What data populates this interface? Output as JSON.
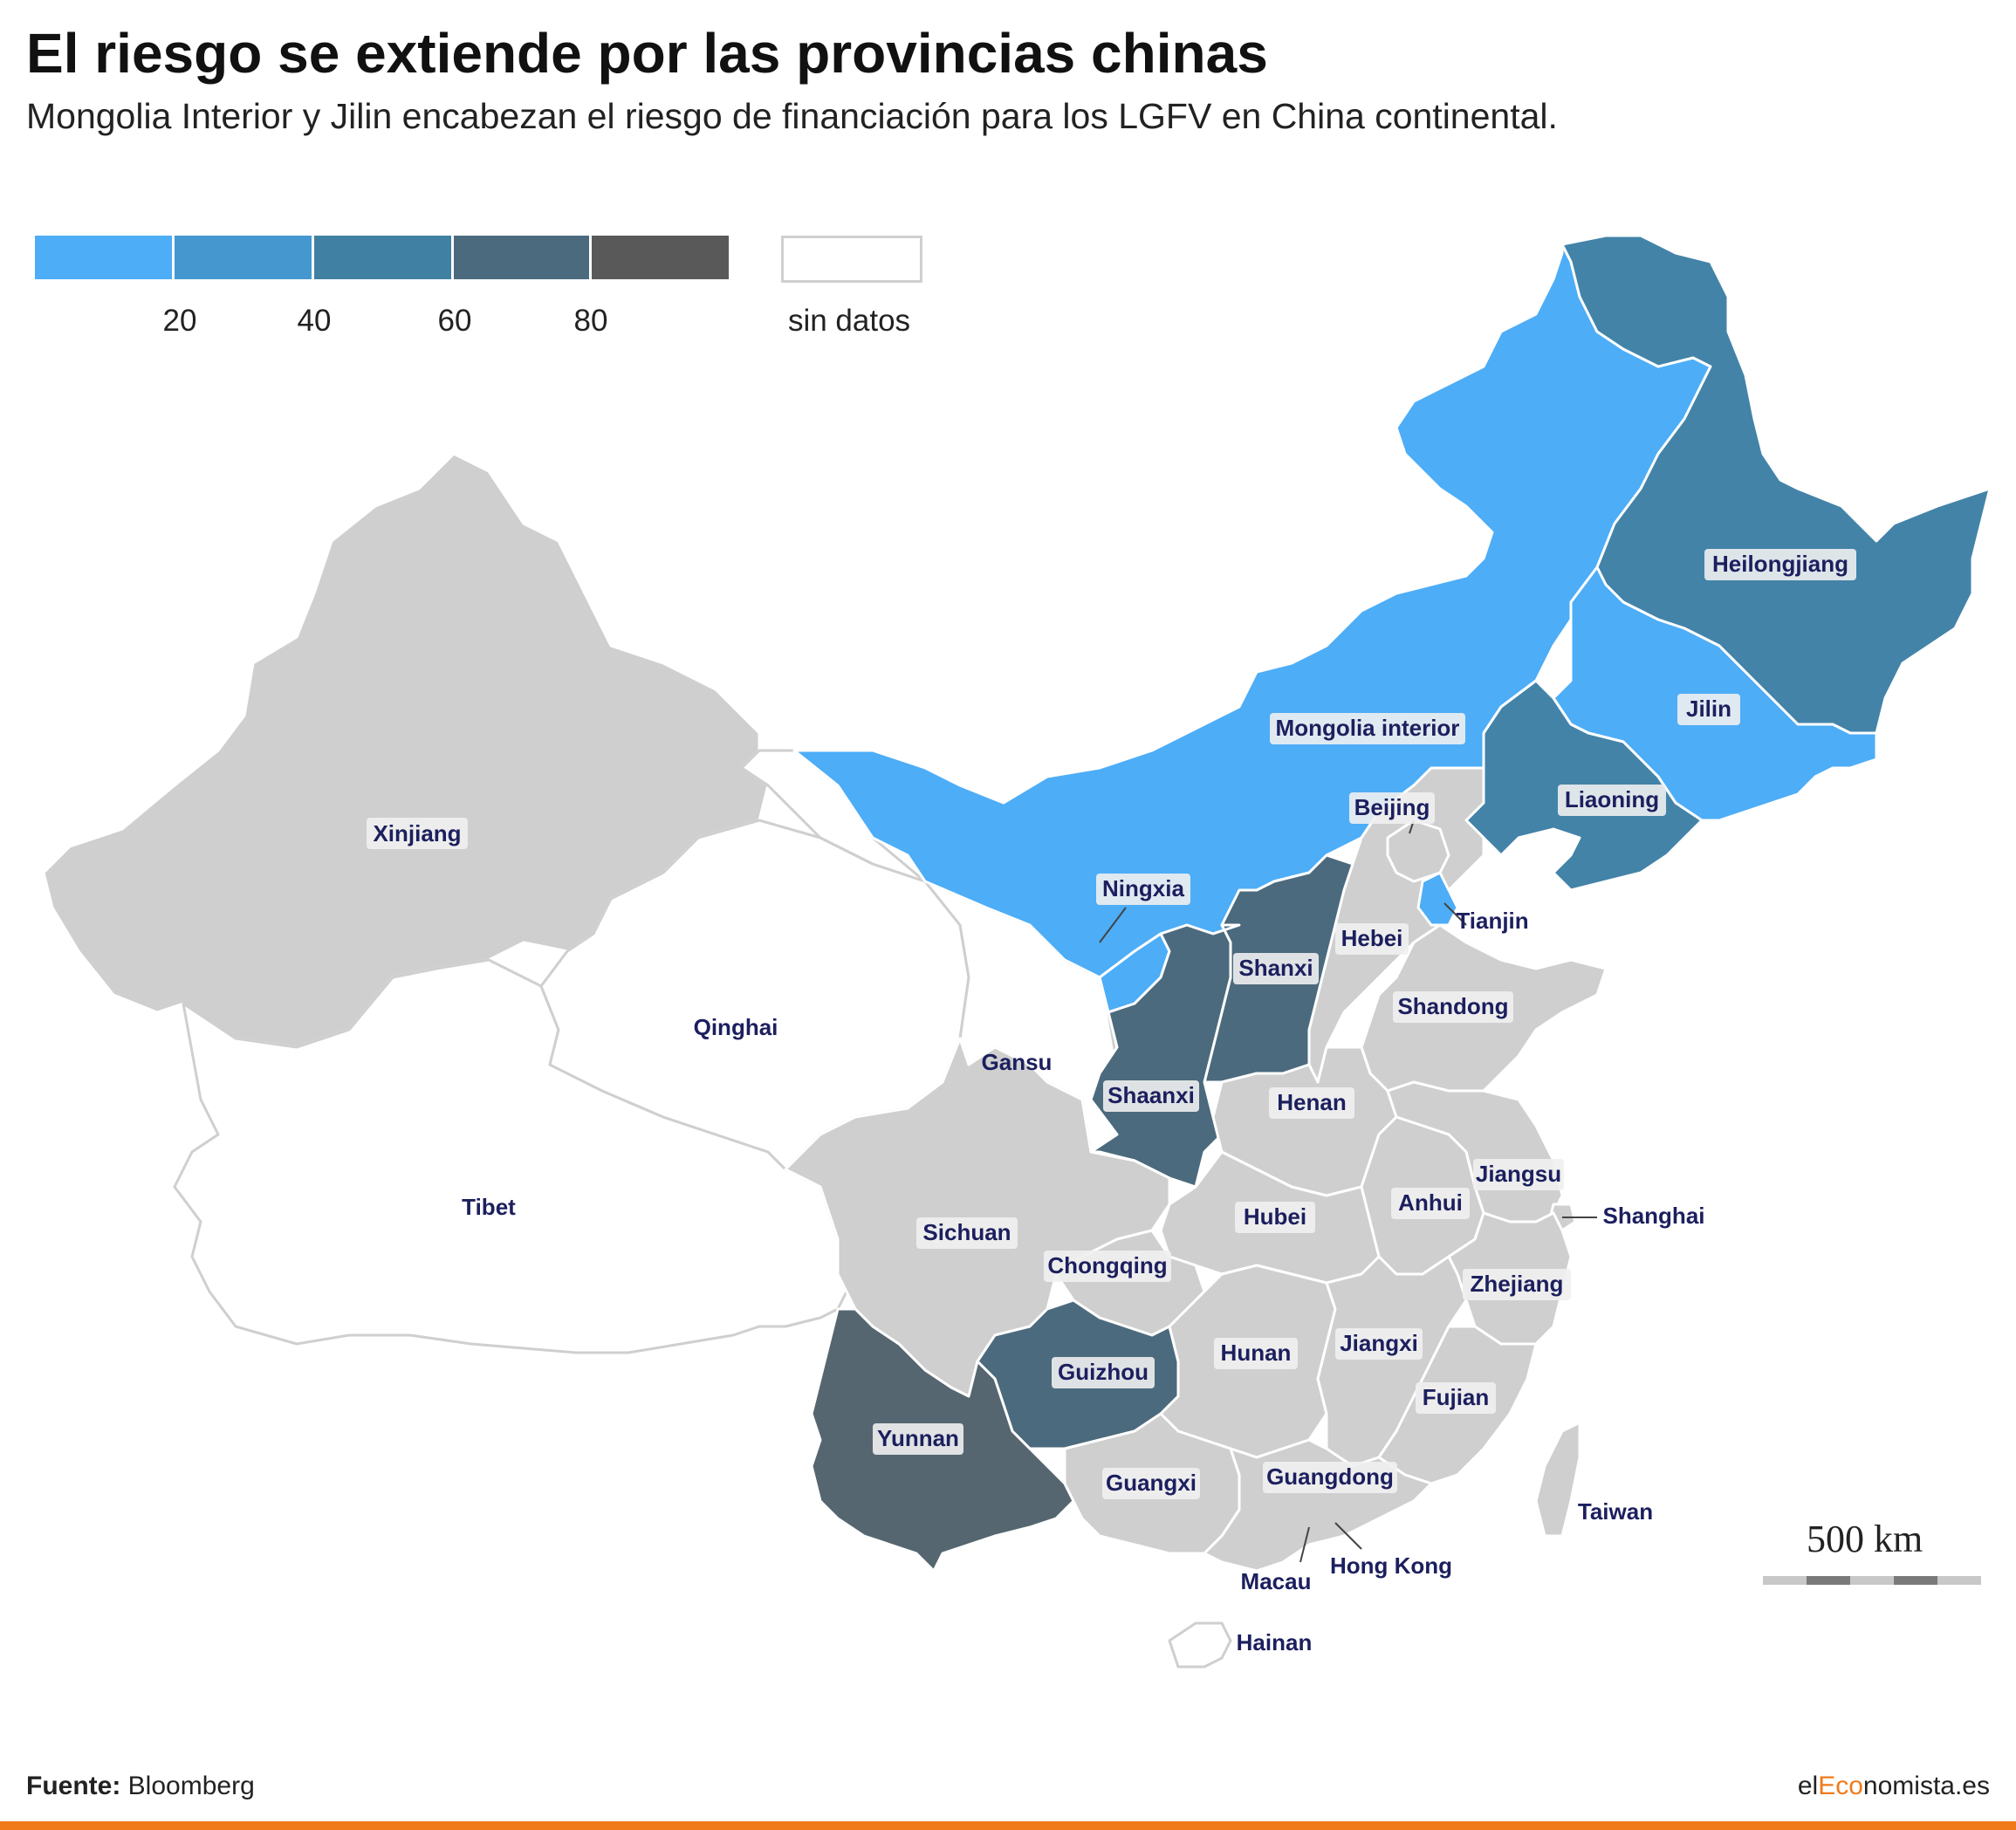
{
  "title": "El riesgo se extiende por las provincias chinas",
  "subtitle": "Mongolia Interior y Jilin encabezan el riesgo de financiación para los LGFV en China continental.",
  "legend": {
    "bins": [
      {
        "range": [
          0,
          20
        ],
        "color": "#4dadf7"
      },
      {
        "range": [
          20,
          40
        ],
        "color": "#4598cf"
      },
      {
        "range": [
          40,
          60
        ],
        "color": "#4080a2"
      },
      {
        "range": [
          60,
          80
        ],
        "color": "#4c6a7d"
      },
      {
        "range": [
          80,
          100
        ],
        "color": "#595959"
      }
    ],
    "ticks": [
      "20",
      "40",
      "60",
      "80"
    ],
    "no_data_label": "sin datos",
    "no_data_color": "#ffffff"
  },
  "colors": {
    "gray": "#cfcfcf",
    "light_blue": "#4dadf7",
    "mid_blue": "#4383a8",
    "dark_slate": "#4c6a7d",
    "darker_slate": "#556670",
    "label_text": "#1c1f5e",
    "accent_orange": "#f07a1a"
  },
  "provinces": {
    "xinjiang": "Xinjiang",
    "tibet": "Tibet",
    "qinghai": "Qinghai",
    "gansu": "Gansu",
    "mongolia": "Mongolia interior",
    "heilongjiang": "Heilongjiang",
    "jilin": "Jilin",
    "liaoning": "Liaoning",
    "beijing": "Beijing",
    "tianjin": "Tianjin",
    "hebei": "Hebei",
    "ningxia": "Ningxia",
    "shanxi": "Shanxi",
    "shaanxi": "Shaanxi",
    "shandong": "Shandong",
    "henan": "Henan",
    "jiangsu": "Jiangsu",
    "shanghai": "Shanghai",
    "anhui": "Anhui",
    "hubei": "Hubei",
    "sichuan": "Sichuan",
    "chongqing": "Chongqing",
    "zhejiang": "Zhejiang",
    "guizhou": "Guizhou",
    "hunan": "Hunan",
    "jiangxi": "Jiangxi",
    "fujian": "Fujian",
    "yunnan": "Yunnan",
    "guangxi": "Guangxi",
    "guangdong": "Guangdong",
    "taiwan": "Taiwan",
    "hongkong": "Hong Kong",
    "macau": "Macau",
    "hainan": "Hainan"
  },
  "scale": {
    "label": "500 km"
  },
  "source": {
    "label": "Fuente:",
    "value": "Bloomberg"
  },
  "brand": {
    "prefix": "el",
    "accent": "Eco",
    "suffix": "nomista.es"
  }
}
